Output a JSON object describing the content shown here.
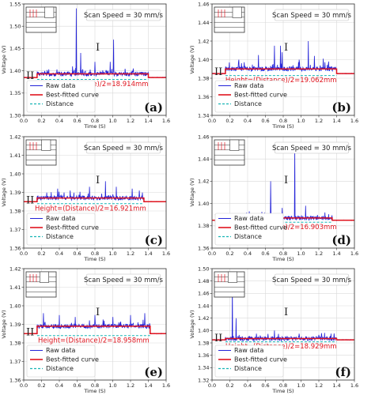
{
  "colors": {
    "raw": "#2323d8",
    "fit": "#e0141e",
    "distance": "#17b5b5",
    "grid": "#d9d9d9"
  },
  "chart_data": [
    {
      "type": "line",
      "panel_label": "(a)",
      "title": "Scan Speed = 30 mm/s",
      "xlabel": "Time (S)",
      "ylabel": "Voltage (V)",
      "xlim": [
        0.0,
        1.6
      ],
      "ylim": [
        1.3,
        1.55
      ],
      "xticks": [
        "0.0",
        "0.2",
        "0.4",
        "0.6",
        "0.8",
        "1.0",
        "1.2",
        "1.4",
        "1.6"
      ],
      "yticks": [
        "1.30",
        "1.35",
        "1.40",
        "1.45",
        "1.50",
        "1.55"
      ],
      "baseline": 1.385,
      "plateau": 1.393,
      "plateau_range": [
        0.15,
        1.4
      ],
      "height_text": "Height=(Distance)/2=18.914mm",
      "region_labels": [
        "I",
        "II"
      ],
      "spikes": [
        [
          0.59,
          1.54
        ],
        [
          0.64,
          1.44
        ],
        [
          0.8,
          1.42
        ],
        [
          0.97,
          1.42
        ],
        [
          1.01,
          1.47
        ],
        [
          0.55,
          1.41
        ],
        [
          1.22,
          1.4
        ]
      ],
      "legend": [
        "Raw data",
        "Best-fitted curve",
        "Distance"
      ],
      "legend_position": "bottom-left",
      "grid": true
    },
    {
      "type": "line",
      "panel_label": "(b)",
      "title": "Scan Speed = 30 mm/s",
      "xlabel": "Time (S)",
      "ylabel": "Voltage (V)",
      "xlim": [
        0.0,
        1.6
      ],
      "ylim": [
        1.34,
        1.46
      ],
      "xticks": [
        "0.0",
        "0.2",
        "0.4",
        "0.6",
        "0.8",
        "1.0",
        "1.2",
        "1.4",
        "1.6"
      ],
      "yticks": [
        "1.34",
        "1.36",
        "1.38",
        "1.40",
        "1.42",
        "1.44",
        "1.46"
      ],
      "baseline": 1.385,
      "plateau": 1.39,
      "plateau_range": [
        0.15,
        1.4
      ],
      "height_text": "Height=(Distance)/2=19.062mm",
      "region_labels": [
        "I",
        "II"
      ],
      "spikes": [
        [
          0.3,
          1.4
        ],
        [
          0.52,
          1.405
        ],
        [
          0.7,
          1.415
        ],
        [
          0.77,
          1.415
        ],
        [
          0.79,
          1.408
        ],
        [
          0.98,
          1.4
        ],
        [
          1.08,
          1.42
        ],
        [
          1.15,
          1.404
        ],
        [
          1.25,
          1.401
        ],
        [
          1.31,
          1.398
        ]
      ],
      "legend": [
        "Raw data",
        "Best-fitted curve",
        "Distance"
      ],
      "legend_position": "bottom-left",
      "grid": true
    },
    {
      "type": "line",
      "panel_label": "(c)",
      "title": "Scan Speed = 30 mm/s",
      "xlabel": "Time (S)",
      "ylabel": "Voltage (V)",
      "xlim": [
        0.0,
        1.6
      ],
      "ylim": [
        1.36,
        1.42
      ],
      "xticks": [
        "0.0",
        "0.2",
        "0.4",
        "0.6",
        "0.8",
        "1.0",
        "1.2",
        "1.4",
        "1.6"
      ],
      "yticks": [
        "1.36",
        "1.37",
        "1.38",
        "1.39",
        "1.40",
        "1.41",
        "1.42"
      ],
      "baseline": 1.385,
      "plateau": 1.387,
      "plateau_range": [
        0.15,
        1.35
      ],
      "height_text": "Height=(Distance)/2=16.921mm",
      "region_labels": [
        "I",
        "II"
      ],
      "spikes": [
        [
          0.38,
          1.392
        ],
        [
          0.52,
          1.391
        ],
        [
          0.74,
          1.393
        ],
        [
          0.92,
          1.396
        ],
        [
          1.04,
          1.393
        ],
        [
          1.22,
          1.392
        ],
        [
          1.3,
          1.391
        ]
      ],
      "legend": [
        "Raw data",
        "Best-fitted curve",
        "Distance"
      ],
      "legend_position": "bottom-left",
      "grid": true
    },
    {
      "type": "line",
      "panel_label": "(d)",
      "title": "Scan Speed = 30 mm/s",
      "xlabel": "Time (S)",
      "ylabel": "Voltage (V)",
      "xlim": [
        0.0,
        1.6
      ],
      "ylim": [
        1.36,
        1.46
      ],
      "xticks": [
        "0.0",
        "0.2",
        "0.4",
        "0.6",
        "0.8",
        "1.0",
        "1.2",
        "1.4",
        "1.6"
      ],
      "yticks": [
        "1.36",
        "1.38",
        "1.40",
        "1.42",
        "1.44",
        "1.46"
      ],
      "baseline": 1.385,
      "plateau": 1.387,
      "plateau_range": [
        0.2,
        1.35
      ],
      "height_text": "Height=(Distance)/2=16.903mm",
      "region_labels": [
        "I",
        "II"
      ],
      "spikes": [
        [
          0.42,
          1.393
        ],
        [
          0.66,
          1.42
        ],
        [
          0.79,
          1.396
        ],
        [
          0.93,
          1.45
        ],
        [
          1.05,
          1.398
        ],
        [
          1.27,
          1.392
        ]
      ],
      "legend": [
        "Raw data",
        "Best-fitted curve",
        "Distance"
      ],
      "legend_position": "bottom-left",
      "grid": true
    },
    {
      "type": "line",
      "panel_label": "(e)",
      "title": "Scan Speed = 30 mm/s",
      "xlabel": "Time (S)",
      "ylabel": "Voltage (V)",
      "xlim": [
        0.0,
        1.6
      ],
      "ylim": [
        1.36,
        1.42
      ],
      "xticks": [
        "0.0",
        "0.2",
        "0.4",
        "0.6",
        "0.8",
        "1.0",
        "1.2",
        "1.4",
        "1.6"
      ],
      "yticks": [
        "1.36",
        "1.37",
        "1.38",
        "1.39",
        "1.40",
        "1.41",
        "1.42"
      ],
      "baseline": 1.385,
      "plateau": 1.389,
      "plateau_range": [
        0.15,
        1.42
      ],
      "height_text": "Height=(Distance)/2=18.958mm",
      "region_labels": [
        "I",
        "II"
      ],
      "spikes": [
        [
          0.22,
          1.396
        ],
        [
          0.4,
          1.395
        ],
        [
          0.58,
          1.394
        ],
        [
          0.8,
          1.395
        ],
        [
          1.0,
          1.394
        ],
        [
          1.2,
          1.395
        ],
        [
          1.36,
          1.396
        ]
      ],
      "legend": [
        "Raw data",
        "Best-fitted curve",
        "Distance"
      ],
      "legend_position": "bottom-left",
      "grid": true
    },
    {
      "type": "line",
      "panel_label": "(f)",
      "title": "Scan Speed = 30 mm/s",
      "xlabel": "Time (S)",
      "ylabel": "Voltage (V)",
      "xlim": [
        0.0,
        1.6
      ],
      "ylim": [
        1.32,
        1.5
      ],
      "xticks": [
        "0.0",
        "0.2",
        "0.4",
        "0.6",
        "0.8",
        "1.0",
        "1.2",
        "1.4",
        "1.6"
      ],
      "yticks": [
        "1.32",
        "1.34",
        "1.36",
        "1.38",
        "1.40",
        "1.42",
        "1.44",
        "1.46",
        "1.48",
        "1.50"
      ],
      "baseline": 1.385,
      "plateau": 1.387,
      "plateau_range": [
        0.15,
        1.4
      ],
      "height_text": "Height=(Distance)/2=18.929mm",
      "region_labels": [
        "I",
        "II"
      ],
      "spikes": [
        [
          0.23,
          1.475
        ],
        [
          0.27,
          1.42
        ],
        [
          0.5,
          1.395
        ],
        [
          0.7,
          1.4
        ],
        [
          0.98,
          1.395
        ],
        [
          1.2,
          1.393
        ]
      ],
      "legend": [
        "Raw data",
        "Best-fitted curve",
        "Distance"
      ],
      "legend_position": "bottom-left",
      "grid": true
    }
  ]
}
